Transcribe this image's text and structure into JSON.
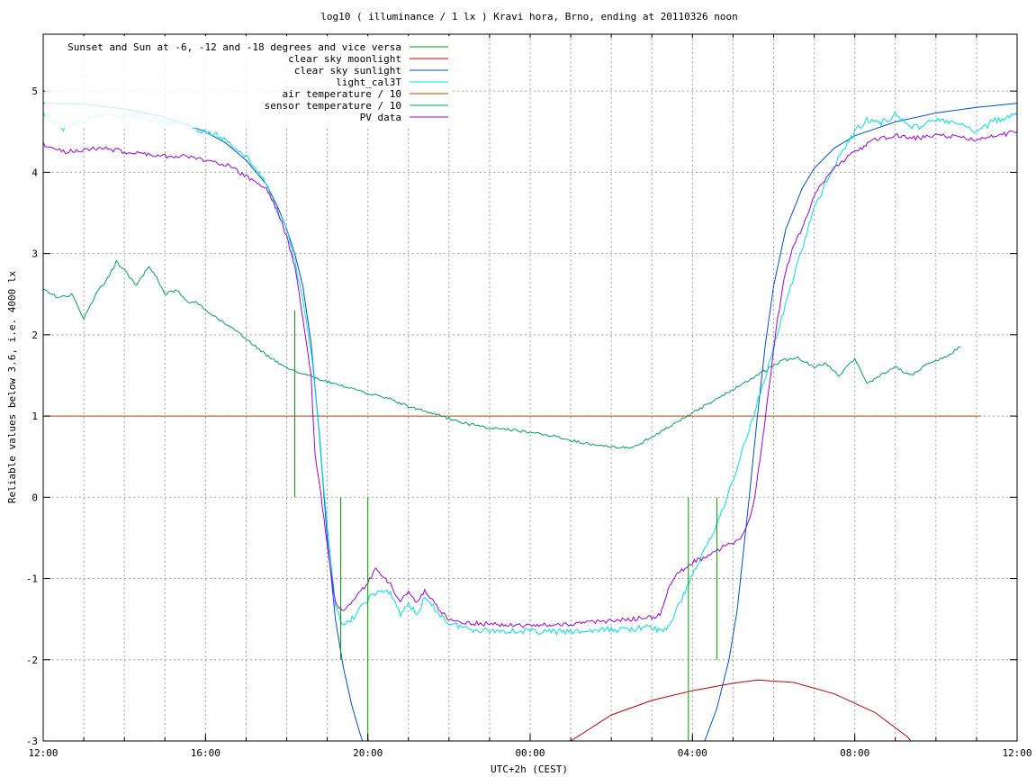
{
  "chart_data": {
    "type": "line",
    "title": "log10 ( illuminance / 1 lx ) Kravi hora, Brno, ending at 20110326 noon",
    "xlabel": "UTC+2h (CEST)",
    "ylabel": "Reliable values below 3.6, i.e. 4000 lx",
    "xlim": [
      12,
      36
    ],
    "ylim": [
      -3,
      5.7
    ],
    "x_ticks": [
      {
        "value": 12,
        "label": "12:00"
      },
      {
        "value": 16,
        "label": "16:00"
      },
      {
        "value": 20,
        "label": "20:00"
      },
      {
        "value": 24,
        "label": "00:00"
      },
      {
        "value": 28,
        "label": "04:00"
      },
      {
        "value": 32,
        "label": "08:00"
      },
      {
        "value": 36,
        "label": "12:00"
      }
    ],
    "x_minor_step": 1,
    "y_ticks": [
      -3,
      -2,
      -1,
      0,
      1,
      2,
      3,
      4,
      5
    ],
    "grid": true,
    "legend_position": "top-left",
    "series": [
      {
        "name": "Sunset and Sun at -6, -12 and -18 degrees and vice versa",
        "color": "#00a000",
        "kind": "impulse",
        "points": [
          [
            18.2,
            2.3
          ],
          [
            19.33,
            -2.0
          ],
          [
            20.0,
            -3.0
          ],
          [
            27.9,
            -3.0
          ],
          [
            28.6,
            -2.0
          ],
          [
            29.7,
            0.0
          ]
        ]
      },
      {
        "name": "clear sky moonlight",
        "color": "#c00000",
        "points": [
          [
            24.0,
            -3.6
          ],
          [
            24.5,
            -3.25
          ],
          [
            25.0,
            -3.0
          ],
          [
            26.0,
            -2.68
          ],
          [
            27.0,
            -2.5
          ],
          [
            28.0,
            -2.38
          ],
          [
            29.0,
            -2.29
          ],
          [
            29.6,
            -2.25
          ],
          [
            30.5,
            -2.28
          ],
          [
            31.5,
            -2.42
          ],
          [
            32.5,
            -2.65
          ],
          [
            33.3,
            -2.95
          ],
          [
            33.8,
            -3.25
          ],
          [
            34.2,
            -3.6
          ]
        ]
      },
      {
        "name": "clear sky sunlight",
        "color": "#0050d0",
        "points": [
          [
            12.0,
            4.85
          ],
          [
            13.0,
            4.84
          ],
          [
            14.0,
            4.78
          ],
          [
            15.0,
            4.68
          ],
          [
            16.0,
            4.5
          ],
          [
            16.5,
            4.36
          ],
          [
            17.0,
            4.15
          ],
          [
            17.5,
            3.85
          ],
          [
            17.8,
            3.55
          ],
          [
            18.0,
            3.3
          ],
          [
            18.2,
            3.0
          ],
          [
            18.4,
            2.6
          ],
          [
            18.6,
            1.9
          ],
          [
            18.8,
            0.8
          ],
          [
            19.0,
            -0.5
          ],
          [
            19.2,
            -1.5
          ],
          [
            19.4,
            -2.1
          ],
          [
            19.6,
            -2.55
          ],
          [
            19.8,
            -2.9
          ],
          [
            20.0,
            -3.2
          ],
          [
            20.2,
            -3.6
          ]
        ],
        "points_morning": [
          [
            27.8,
            -3.6
          ],
          [
            28.0,
            -3.35
          ],
          [
            28.3,
            -3.0
          ],
          [
            28.6,
            -2.6
          ],
          [
            28.9,
            -2.0
          ],
          [
            29.1,
            -1.4
          ],
          [
            29.4,
            0.0
          ],
          [
            29.6,
            1.0
          ],
          [
            29.8,
            1.9
          ],
          [
            30.0,
            2.6
          ],
          [
            30.3,
            3.3
          ],
          [
            30.7,
            3.8
          ],
          [
            31.0,
            4.05
          ],
          [
            31.5,
            4.3
          ],
          [
            32.0,
            4.45
          ],
          [
            33.0,
            4.62
          ],
          [
            34.0,
            4.73
          ],
          [
            35.0,
            4.8
          ],
          [
            36.0,
            4.85
          ]
        ]
      },
      {
        "name": "light_cal3T",
        "color": "#00e0e0",
        "points": [
          [
            12.0,
            4.7
          ],
          [
            12.5,
            4.55
          ],
          [
            13.0,
            4.62
          ],
          [
            13.5,
            4.72
          ],
          [
            14.0,
            4.7
          ],
          [
            14.5,
            4.68
          ],
          [
            15.0,
            4.62
          ],
          [
            15.5,
            4.6
          ],
          [
            16.0,
            4.5
          ],
          [
            16.5,
            4.4
          ],
          [
            17.0,
            4.2
          ],
          [
            17.5,
            3.85
          ],
          [
            17.8,
            3.5
          ],
          [
            18.0,
            3.3
          ],
          [
            18.2,
            2.9
          ],
          [
            18.4,
            2.4
          ],
          [
            18.6,
            1.8
          ],
          [
            18.8,
            0.8
          ],
          [
            19.0,
            -0.4
          ],
          [
            19.2,
            -1.3
          ],
          [
            19.4,
            -1.6
          ],
          [
            19.7,
            -1.45
          ],
          [
            20.0,
            -1.25
          ],
          [
            20.3,
            -1.15
          ],
          [
            20.6,
            -1.2
          ],
          [
            20.8,
            -1.45
          ],
          [
            21.0,
            -1.3
          ],
          [
            21.2,
            -1.45
          ],
          [
            21.4,
            -1.25
          ],
          [
            21.7,
            -1.4
          ],
          [
            22.0,
            -1.55
          ],
          [
            22.5,
            -1.62
          ],
          [
            23.0,
            -1.64
          ],
          [
            24.0,
            -1.65
          ],
          [
            25.0,
            -1.66
          ],
          [
            26.0,
            -1.63
          ],
          [
            26.5,
            -1.62
          ],
          [
            27.0,
            -1.6
          ],
          [
            27.2,
            -1.65
          ],
          [
            27.4,
            -1.6
          ],
          [
            27.6,
            -1.4
          ],
          [
            28.0,
            -0.95
          ],
          [
            28.5,
            -0.45
          ],
          [
            29.0,
            0.2
          ],
          [
            29.4,
            0.85
          ],
          [
            29.8,
            1.5
          ],
          [
            30.2,
            2.2
          ],
          [
            30.6,
            2.9
          ],
          [
            31.0,
            3.55
          ],
          [
            31.5,
            4.1
          ],
          [
            32.0,
            4.5
          ],
          [
            32.3,
            4.65
          ],
          [
            32.6,
            4.6
          ],
          [
            33.0,
            4.7
          ],
          [
            33.5,
            4.55
          ],
          [
            34.0,
            4.65
          ],
          [
            34.5,
            4.6
          ],
          [
            35.0,
            4.5
          ],
          [
            35.5,
            4.65
          ],
          [
            36.0,
            4.7
          ]
        ]
      },
      {
        "name": "air temperature / 10",
        "color": "#c84000",
        "points": [
          [
            12.0,
            1.0
          ],
          [
            35.1,
            1.0
          ]
        ]
      },
      {
        "name": "sensor temperature / 10",
        "color": "#00a060",
        "points": [
          [
            12.0,
            2.55
          ],
          [
            12.4,
            2.45
          ],
          [
            12.7,
            2.5
          ],
          [
            13.0,
            2.2
          ],
          [
            13.3,
            2.5
          ],
          [
            13.6,
            2.7
          ],
          [
            13.8,
            2.9
          ],
          [
            14.0,
            2.8
          ],
          [
            14.3,
            2.6
          ],
          [
            14.6,
            2.85
          ],
          [
            14.8,
            2.7
          ],
          [
            15.0,
            2.5
          ],
          [
            15.3,
            2.55
          ],
          [
            15.6,
            2.4
          ],
          [
            15.8,
            2.4
          ],
          [
            16.0,
            2.3
          ],
          [
            16.3,
            2.2
          ],
          [
            16.6,
            2.1
          ],
          [
            17.0,
            1.95
          ],
          [
            17.5,
            1.75
          ],
          [
            18.0,
            1.6
          ],
          [
            18.5,
            1.5
          ],
          [
            19.0,
            1.42
          ],
          [
            19.5,
            1.35
          ],
          [
            20.0,
            1.28
          ],
          [
            20.5,
            1.22
          ],
          [
            21.0,
            1.12
          ],
          [
            21.5,
            1.05
          ],
          [
            22.0,
            0.97
          ],
          [
            22.5,
            0.9
          ],
          [
            23.0,
            0.85
          ],
          [
            23.5,
            0.83
          ],
          [
            24.0,
            0.8
          ],
          [
            24.5,
            0.76
          ],
          [
            25.0,
            0.7
          ],
          [
            25.5,
            0.65
          ],
          [
            26.0,
            0.62
          ],
          [
            26.3,
            0.62
          ],
          [
            26.5,
            0.6
          ],
          [
            30.2,
            1.68
          ],
          [
            30.6,
            1.72
          ],
          [
            31.0,
            1.6
          ],
          [
            31.3,
            1.65
          ],
          [
            31.6,
            1.5
          ],
          [
            32.0,
            1.7
          ],
          [
            32.3,
            1.4
          ],
          [
            32.7,
            1.52
          ],
          [
            33.0,
            1.6
          ],
          [
            33.4,
            1.5
          ],
          [
            33.8,
            1.65
          ],
          [
            34.2,
            1.72
          ],
          [
            34.6,
            1.85
          ]
        ]
      },
      {
        "name": "PV data",
        "color": "#a000e0",
        "points": [
          [
            12.0,
            4.35
          ],
          [
            12.5,
            4.25
          ],
          [
            13.0,
            4.28
          ],
          [
            13.5,
            4.3
          ],
          [
            14.0,
            4.25
          ],
          [
            14.5,
            4.23
          ],
          [
            15.0,
            4.2
          ],
          [
            15.5,
            4.2
          ],
          [
            16.0,
            4.15
          ],
          [
            16.5,
            4.1
          ],
          [
            17.0,
            3.95
          ],
          [
            17.5,
            3.8
          ],
          [
            17.8,
            3.5
          ],
          [
            18.0,
            3.2
          ],
          [
            18.2,
            2.85
          ],
          [
            18.4,
            2.2
          ],
          [
            18.6,
            1.5
          ],
          [
            18.7,
            0.5
          ],
          [
            18.8,
            0.2
          ],
          [
            19.0,
            -0.6
          ],
          [
            19.2,
            -1.3
          ],
          [
            19.4,
            -1.42
          ],
          [
            19.7,
            -1.25
          ],
          [
            20.0,
            -1.05
          ],
          [
            20.2,
            -0.88
          ],
          [
            20.4,
            -1.0
          ],
          [
            20.6,
            -1.1
          ],
          [
            20.8,
            -1.3
          ],
          [
            21.0,
            -1.15
          ],
          [
            21.2,
            -1.3
          ],
          [
            21.4,
            -1.15
          ],
          [
            21.7,
            -1.35
          ],
          [
            22.0,
            -1.5
          ],
          [
            22.5,
            -1.55
          ],
          [
            23.0,
            -1.56
          ],
          [
            24.0,
            -1.58
          ],
          [
            25.0,
            -1.56
          ],
          [
            26.0,
            -1.52
          ],
          [
            26.5,
            -1.5
          ],
          [
            27.0,
            -1.48
          ],
          [
            27.2,
            -1.45
          ],
          [
            27.4,
            -1.15
          ],
          [
            27.6,
            -0.95
          ],
          [
            28.0,
            -0.8
          ],
          [
            28.4,
            -0.72
          ],
          [
            28.8,
            -0.6
          ],
          [
            29.1,
            -0.55
          ],
          [
            29.3,
            -0.4
          ],
          [
            29.5,
            -0.1
          ],
          [
            29.7,
            0.6
          ],
          [
            29.9,
            1.4
          ],
          [
            30.1,
            2.2
          ],
          [
            30.3,
            2.8
          ],
          [
            30.5,
            3.1
          ],
          [
            30.7,
            3.3
          ],
          [
            31.0,
            3.7
          ],
          [
            31.3,
            3.95
          ],
          [
            31.6,
            4.1
          ],
          [
            32.0,
            4.25
          ],
          [
            32.5,
            4.4
          ],
          [
            33.0,
            4.45
          ],
          [
            33.5,
            4.42
          ],
          [
            34.0,
            4.45
          ],
          [
            34.5,
            4.44
          ],
          [
            35.0,
            4.4
          ],
          [
            35.5,
            4.45
          ],
          [
            36.0,
            4.5
          ]
        ]
      }
    ]
  }
}
